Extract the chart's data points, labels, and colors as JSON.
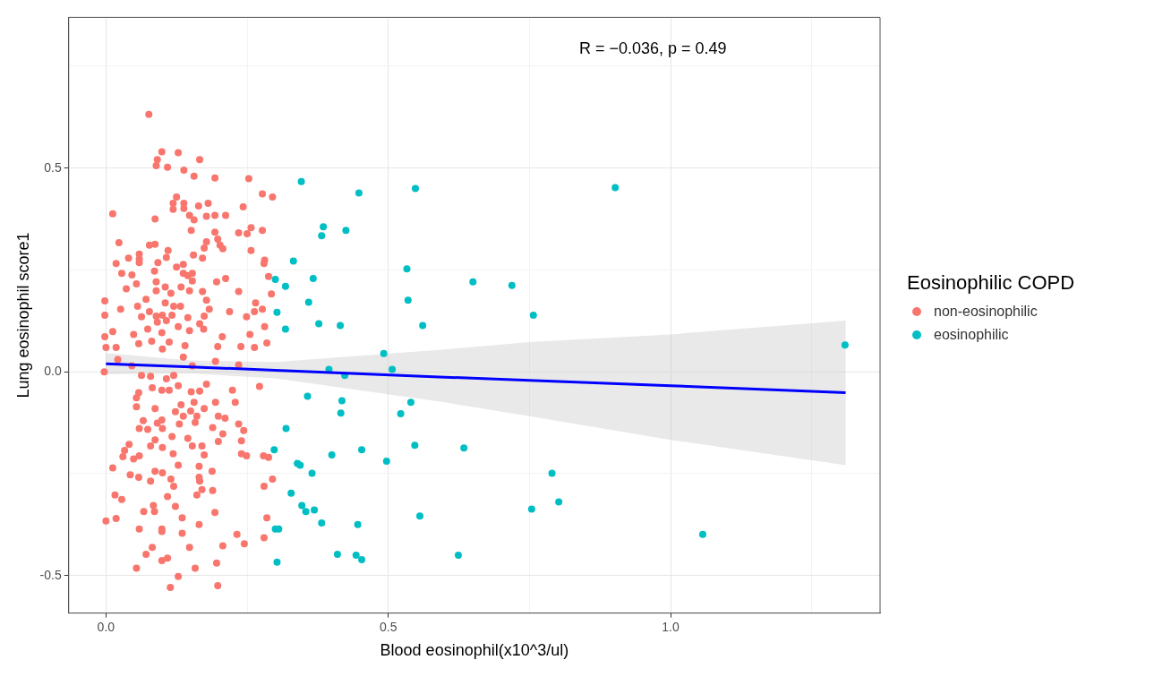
{
  "chart_data": {
    "type": "scatter",
    "xlabel": "Blood eosinophil(x10^3/ul)",
    "ylabel": "Lung eosinophil score1",
    "legend_title": "Eosinophilic COPD",
    "legend": "right",
    "grid": true,
    "marker": "circle",
    "annotations": [
      "R = −0.036, p = 0.49"
    ],
    "xlim": [
      -0.066,
      1.371
    ],
    "ylim": [
      -0.592,
      0.87
    ],
    "xticks": [
      {
        "value": 0,
        "label": "0.0"
      },
      {
        "value": 0.25,
        "label": null
      },
      {
        "value": 0.5,
        "label": "0.5"
      },
      {
        "value": 0.75,
        "label": null
      },
      {
        "value": 1,
        "label": "1.0"
      },
      {
        "value": 1.25,
        "label": null
      }
    ],
    "yticks": [
      {
        "value": -0.5,
        "label": "-0.5"
      },
      {
        "value": -0.25,
        "label": null
      },
      {
        "value": 0,
        "label": "0.0"
      },
      {
        "value": 0.25,
        "label": null
      },
      {
        "value": 0.5,
        "label": "0.5"
      },
      {
        "value": 0.75,
        "label": null
      }
    ],
    "series": [
      {
        "name": "non-eosinophilic",
        "color": "#f8766d",
        "x": [
          0.076,
          0.099,
          0.128,
          0.091,
          0.166,
          0.089,
          0.109,
          0.138,
          0.156,
          0.193,
          0.253,
          0.012,
          0.277,
          0.295,
          0.125,
          0.119,
          0.138,
          0.181,
          0.164,
          0.243,
          0.119,
          0.138,
          0.087,
          0.148,
          0.178,
          0.193,
          0.212,
          0.156,
          0.151,
          0.193,
          0.235,
          0.25,
          0.257,
          0.277,
          0.198,
          0.178,
          0.202,
          0.207,
          0.174,
          0.023,
          0.077,
          0.087,
          0.11,
          0.257,
          0.059,
          0.155,
          0.04,
          0.059,
          0.107,
          0.171,
          0.281,
          0.018,
          0.092,
          0.059,
          0.137,
          0.125,
          0.28,
          0.086,
          0.028,
          0.046,
          0.137,
          0.153,
          0.145,
          0.288,
          0.089,
          0.153,
          0.196,
          0.212,
          0.054,
          0.036,
          0.105,
          0.133,
          0.089,
          0.115,
          0.148,
          0.171,
          0.235,
          0.293,
          -0.002,
          0.071,
          0.178,
          0.265,
          0.026,
          0.056,
          0.105,
          0.12,
          0.132,
          0.183,
          0.219,
          0.277,
          -0.002,
          0.063,
          0.077,
          0.089,
          0.1,
          0.117,
          0.145,
          0.174,
          0.249,
          0.263,
          0.091,
          0.107,
          0.166,
          0.128,
          0.148,
          0.281,
          0.012,
          0.049,
          0.074,
          0.099,
          0.173,
          0.206,
          0.255,
          -0.002,
          0.058,
          0.081,
          0.112,
          0.14,
          0.198,
          0.239,
          0.263,
          0,
          0.018,
          0.1,
          0.285,
          0.021,
          0.046,
          0.153,
          0.194,
          0.235,
          0.137,
          -0.003,
          0.063,
          0.079,
          0.107,
          0.12,
          0.178,
          0.224,
          0.272,
          0.058,
          0.082,
          0.099,
          0.112,
          0.128,
          0.151,
          0.166,
          0.054,
          0.194,
          0.229,
          0.156,
          0.133,
          0.054,
          0.087,
          0.174,
          0.123,
          0.15,
          0.137,
          0.161,
          0.199,
          0.211,
          0.066,
          0.091,
          0.099,
          0.158,
          0.235,
          0.13,
          0.059,
          0.074,
          0.1,
          0.189,
          0.244,
          0.117,
          0.145,
          0.207,
          0.087,
          0.199,
          0.24,
          0.041,
          0.079,
          0.1,
          0.153,
          0.17,
          0.033,
          0.03,
          0.049,
          0.059,
          0.119,
          0.128,
          0.174,
          0.24,
          0.249,
          0.279,
          0.288,
          0.012,
          0.165,
          0.188,
          0.043,
          0.058,
          0.087,
          0.1,
          0.115,
          0.165,
          0.166,
          0.079,
          0.12,
          0.17,
          0.189,
          0.28,
          0.295,
          0.016,
          0.028,
          0.109,
          0.123,
          0.161,
          0.084,
          0.067,
          0.086,
          0.193,
          0.285,
          0,
          0.018,
          0.135,
          0.059,
          0.099,
          0.165,
          0.099,
          0.135,
          0.232,
          0.28,
          0.245,
          0.207,
          0.082,
          0.071,
          0.148,
          0.099,
          0.109,
          0.054,
          0.158,
          0.196,
          0.128,
          0.114,
          0.198
        ],
        "values": [
          0.632,
          0.54,
          0.538,
          0.521,
          0.521,
          0.506,
          0.502,
          0.495,
          0.48,
          0.476,
          0.474,
          0.388,
          0.437,
          0.429,
          0.429,
          0.414,
          0.414,
          0.414,
          0.407,
          0.405,
          0.399,
          0.401,
          0.375,
          0.384,
          0.382,
          0.384,
          0.384,
          0.373,
          0.347,
          0.343,
          0.341,
          0.339,
          0.354,
          0.347,
          0.326,
          0.319,
          0.311,
          0.302,
          0.304,
          0.317,
          0.311,
          0.313,
          0.298,
          0.298,
          0.289,
          0.287,
          0.279,
          0.277,
          0.281,
          0.279,
          0.274,
          0.266,
          0.268,
          0.268,
          0.264,
          0.257,
          0.266,
          0.247,
          0.242,
          0.238,
          0.242,
          0.242,
          0.236,
          0.234,
          0.221,
          0.223,
          0.221,
          0.229,
          0.216,
          0.204,
          0.208,
          0.208,
          0.199,
          0.193,
          0.199,
          0.197,
          0.197,
          0.191,
          0.174,
          0.178,
          0.176,
          0.169,
          0.154,
          0.161,
          0.169,
          0.161,
          0.161,
          0.154,
          0.148,
          0.154,
          0.139,
          0.135,
          0.148,
          0.137,
          0.139,
          0.139,
          0.133,
          0.137,
          0.135,
          0.148,
          0.122,
          0.126,
          0.118,
          0.111,
          0.101,
          0.111,
          0.099,
          0.092,
          0.105,
          0.096,
          0.105,
          0.086,
          0.092,
          0.086,
          0.069,
          0.075,
          0.073,
          0.064,
          0.062,
          0.062,
          0.06,
          0.06,
          0.06,
          0.056,
          0.071,
          0.03,
          0.015,
          0.015,
          0.026,
          0.017,
          0.036,
          0,
          -0.009,
          -0.011,
          -0.017,
          -0.009,
          -0.03,
          -0.045,
          -0.036,
          -0.051,
          -0.039,
          -0.045,
          -0.045,
          -0.034,
          -0.049,
          -0.047,
          -0.064,
          -0.075,
          -0.075,
          -0.075,
          -0.081,
          -0.086,
          -0.09,
          -0.09,
          -0.098,
          -0.096,
          -0.109,
          -0.109,
          -0.109,
          -0.114,
          -0.12,
          -0.126,
          -0.118,
          -0.124,
          -0.128,
          -0.128,
          -0.139,
          -0.141,
          -0.139,
          -0.137,
          -0.144,
          -0.159,
          -0.163,
          -0.152,
          -0.167,
          -0.171,
          -0.169,
          -0.178,
          -0.182,
          -0.186,
          -0.182,
          -0.182,
          -0.193,
          -0.208,
          -0.214,
          -0.206,
          -0.201,
          -0.229,
          -0.204,
          -0.201,
          -0.206,
          -0.206,
          -0.21,
          -0.236,
          -0.232,
          -0.244,
          -0.253,
          -0.259,
          -0.244,
          -0.248,
          -0.263,
          -0.259,
          -0.268,
          -0.268,
          -0.281,
          -0.289,
          -0.291,
          -0.281,
          -0.263,
          -0.302,
          -0.313,
          -0.306,
          -0.33,
          -0.302,
          -0.328,
          -0.343,
          -0.343,
          -0.345,
          -0.358,
          -0.366,
          -0.36,
          -0.358,
          -0.386,
          -0.386,
          -0.375,
          -0.392,
          -0.396,
          -0.399,
          -0.407,
          -0.422,
          -0.427,
          -0.431,
          -0.448,
          -0.431,
          -0.463,
          -0.457,
          -0.482,
          -0.482,
          -0.469,
          -0.502,
          -0.529,
          -0.525
        ]
      },
      {
        "name": "eosinophilic",
        "color": "#00bfc4",
        "x": [
          0.346,
          0.448,
          0.548,
          0.385,
          0.382,
          0.425,
          0.332,
          0.533,
          0.3,
          0.367,
          0.318,
          0.65,
          0.719,
          0.359,
          0.535,
          0.303,
          0.757,
          0.318,
          0.377,
          0.415,
          0.561,
          0.492,
          0.395,
          0.423,
          0.507,
          0.357,
          0.418,
          0.54,
          0.416,
          0.522,
          0.319,
          0.298,
          0.4,
          0.453,
          0.547,
          0.634,
          0.497,
          0.339,
          0.344,
          0.365,
          0.79,
          0.328,
          0.802,
          0.754,
          0.347,
          0.354,
          0.369,
          0.556,
          0.382,
          0.446,
          0.3,
          0.306,
          0.41,
          0.443,
          0.453,
          0.624,
          0.303,
          0.902,
          1.309,
          1.057
        ],
        "values": [
          0.467,
          0.439,
          0.45,
          0.356,
          0.334,
          0.347,
          0.272,
          0.253,
          0.227,
          0.229,
          0.21,
          0.221,
          0.212,
          0.171,
          0.176,
          0.146,
          0.139,
          0.105,
          0.118,
          0.114,
          0.114,
          0.045,
          0.006,
          -0.009,
          0.006,
          -0.06,
          -0.071,
          -0.075,
          -0.101,
          -0.103,
          -0.139,
          -0.191,
          -0.204,
          -0.191,
          -0.18,
          -0.187,
          -0.219,
          -0.225,
          -0.229,
          -0.249,
          -0.249,
          -0.298,
          -0.319,
          -0.337,
          -0.328,
          -0.343,
          -0.339,
          -0.354,
          -0.371,
          -0.375,
          -0.386,
          -0.386,
          -0.448,
          -0.45,
          -0.461,
          -0.45,
          -0.467,
          0.452,
          0.066,
          -0.399
        ]
      },
      {
        "type": "line",
        "color": "#0000ff",
        "marker": "none",
        "x": [
          0,
          0.15,
          0.3,
          0.6,
          0.75,
          1,
          1.31
        ],
        "values": [
          0.02,
          0.012,
          0.004,
          -0.013,
          -0.021,
          -0.034,
          -0.051
        ],
        "lower": [
          -0.006,
          -0.004,
          -0.016,
          -0.075,
          -0.109,
          -0.167,
          -0.229
        ],
        "upper": [
          0.046,
          0.028,
          0.024,
          0.055,
          0.073,
          0.092,
          0.126
        ]
      }
    ]
  }
}
